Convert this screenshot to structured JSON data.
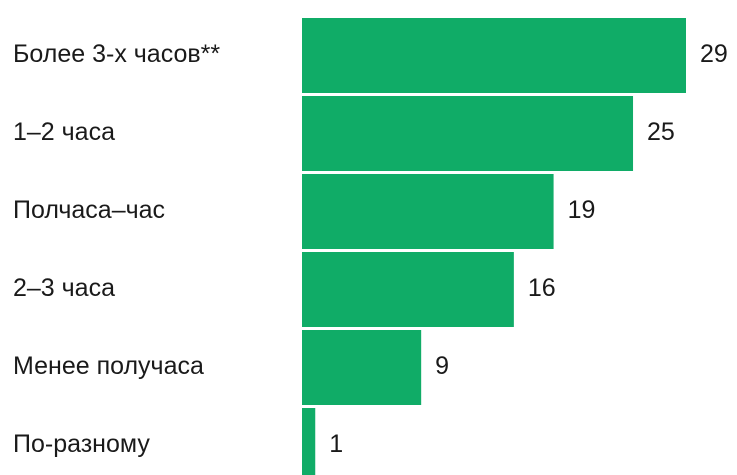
{
  "chart_data": {
    "type": "bar",
    "orientation": "horizontal",
    "categories": [
      "Более 3-х часов**",
      "1–2 часа",
      "Полчаса–час",
      "2–3 часа",
      "Менее получаса",
      "По-разному"
    ],
    "values": [
      29,
      25,
      19,
      16,
      9,
      1
    ],
    "title": "",
    "xlabel": "",
    "ylabel": "",
    "xlim": [
      0,
      29
    ],
    "grid": false,
    "legend": "none",
    "bar_color": "#10ac67",
    "text_color": "#1a1a1a"
  }
}
